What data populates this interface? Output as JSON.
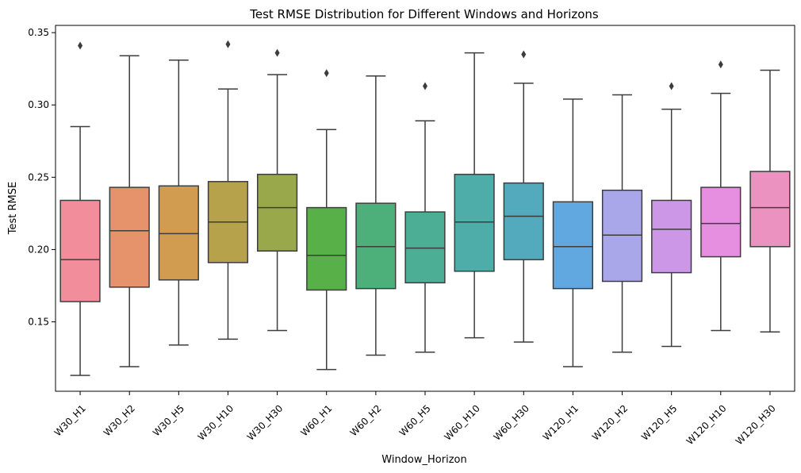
{
  "chart_data": {
    "type": "box",
    "title": "Test RMSE Distribution for Different Windows and Horizons",
    "xlabel": "Window_Horizon",
    "ylabel": "Test RMSE",
    "ylim": [
      0.102,
      0.355
    ],
    "yticks": [
      0.15,
      0.2,
      0.25,
      0.3,
      0.35
    ],
    "ytick_labels": [
      "0.15",
      "0.20",
      "0.25",
      "0.30",
      "0.35"
    ],
    "grid": false,
    "legend": "none",
    "categories": [
      "W30_H1",
      "W30_H2",
      "W30_H5",
      "W30_H10",
      "W30_H30",
      "W60_H1",
      "W60_H2",
      "W60_H5",
      "W60_H10",
      "W60_H30",
      "W120_H1",
      "W120_H2",
      "W120_H5",
      "W120_H10",
      "W120_H30"
    ],
    "boxes": [
      {
        "category": "W30_H1",
        "whisker_low": 0.113,
        "q1": 0.164,
        "median": 0.193,
        "q3": 0.234,
        "whisker_high": 0.285,
        "outliers": [
          0.341
        ],
        "color": "#f28e9c"
      },
      {
        "category": "W30_H2",
        "whisker_low": 0.119,
        "q1": 0.174,
        "median": 0.213,
        "q3": 0.243,
        "whisker_high": 0.334,
        "outliers": [],
        "color": "#e6936b"
      },
      {
        "category": "W30_H5",
        "whisker_low": 0.134,
        "q1": 0.179,
        "median": 0.211,
        "q3": 0.244,
        "whisker_high": 0.331,
        "outliers": [],
        "color": "#d19c4f"
      },
      {
        "category": "W30_H10",
        "whisker_low": 0.138,
        "q1": 0.191,
        "median": 0.219,
        "q3": 0.247,
        "whisker_high": 0.311,
        "outliers": [
          0.342
        ],
        "color": "#b5a24a"
      },
      {
        "category": "W30_H30",
        "whisker_low": 0.144,
        "q1": 0.199,
        "median": 0.229,
        "q3": 0.252,
        "whisker_high": 0.321,
        "outliers": [
          0.336
        ],
        "color": "#99a84a"
      },
      {
        "category": "W60_H1",
        "whisker_low": 0.117,
        "q1": 0.172,
        "median": 0.196,
        "q3": 0.229,
        "whisker_high": 0.283,
        "outliers": [
          0.322
        ],
        "color": "#58b048"
      },
      {
        "category": "W60_H2",
        "whisker_low": 0.127,
        "q1": 0.173,
        "median": 0.202,
        "q3": 0.232,
        "whisker_high": 0.32,
        "outliers": [],
        "color": "#4db07a"
      },
      {
        "category": "W60_H5",
        "whisker_low": 0.129,
        "q1": 0.177,
        "median": 0.201,
        "q3": 0.226,
        "whisker_high": 0.289,
        "outliers": [
          0.313
        ],
        "color": "#4dae96"
      },
      {
        "category": "W60_H10",
        "whisker_low": 0.139,
        "q1": 0.185,
        "median": 0.219,
        "q3": 0.252,
        "whisker_high": 0.336,
        "outliers": [],
        "color": "#4fada9"
      },
      {
        "category": "W60_H30",
        "whisker_low": 0.136,
        "q1": 0.193,
        "median": 0.223,
        "q3": 0.246,
        "whisker_high": 0.315,
        "outliers": [
          0.335
        ],
        "color": "#53aabd"
      },
      {
        "category": "W120_H1",
        "whisker_low": 0.119,
        "q1": 0.173,
        "median": 0.202,
        "q3": 0.233,
        "whisker_high": 0.304,
        "outliers": [],
        "color": "#62a8e0"
      },
      {
        "category": "W120_H2",
        "whisker_low": 0.129,
        "q1": 0.178,
        "median": 0.21,
        "q3": 0.241,
        "whisker_high": 0.307,
        "outliers": [],
        "color": "#a9a6ea"
      },
      {
        "category": "W120_H5",
        "whisker_low": 0.133,
        "q1": 0.184,
        "median": 0.214,
        "q3": 0.234,
        "whisker_high": 0.297,
        "outliers": [
          0.313
        ],
        "color": "#cb97e6"
      },
      {
        "category": "W120_H10",
        "whisker_low": 0.144,
        "q1": 0.195,
        "median": 0.218,
        "q3": 0.243,
        "whisker_high": 0.308,
        "outliers": [
          0.328
        ],
        "color": "#e68ee0"
      },
      {
        "category": "W120_H30",
        "whisker_low": 0.143,
        "q1": 0.202,
        "median": 0.229,
        "q3": 0.254,
        "whisker_high": 0.324,
        "outliers": [],
        "color": "#eb92c1"
      }
    ],
    "line_color": "#3d3d3d"
  }
}
